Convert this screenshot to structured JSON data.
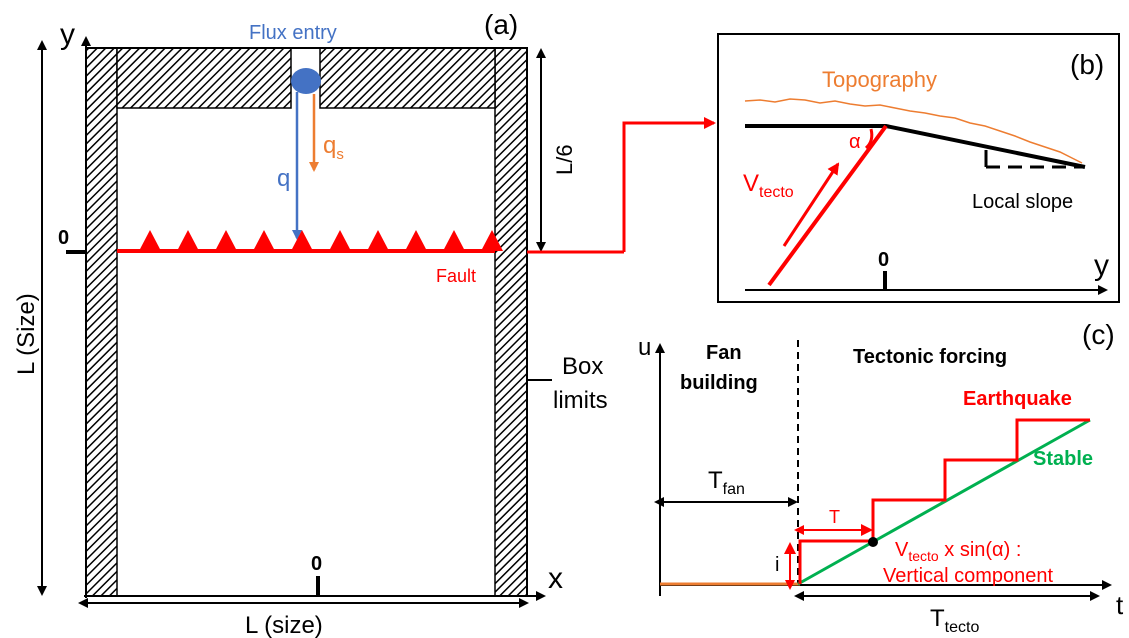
{
  "panel_a": {
    "label": "(a)",
    "axis_y": "y",
    "axis_x": "x",
    "flux_entry": "Flux entry",
    "q": "q",
    "qs_main": "q",
    "qs_sub": "s",
    "l6": "L/6",
    "zero_left": "0",
    "zero_bottom": "0",
    "fault": "Fault",
    "l_size_vertical": "L (Size)",
    "l_size_horizontal": "L (size)",
    "box_limits_1": "Box",
    "box_limits_2": "limits"
  },
  "panel_b": {
    "label": "(b)",
    "topography": "Topography",
    "alpha": "α",
    "vtecto_main": "V",
    "vtecto_sub": "tecto",
    "local_slope": "Local slope",
    "zero": "0",
    "axis_y": "y"
  },
  "panel_c": {
    "label": "(c)",
    "axis_u": "u",
    "axis_t": "t",
    "fan_building_1": "Fan",
    "fan_building_2": "building",
    "tectonic_forcing": "Tectonic forcing",
    "earthquake": "Earthquake",
    "stable": "Stable",
    "tfan_main": "T",
    "tfan_sub": "fan",
    "t_interval": "T",
    "i": "i",
    "vcomp_main": "V",
    "vcomp_sub": "tecto",
    "vcomp_rest": " x sin(α) :",
    "vertical_component": "Vertical component",
    "ttecto_main": "T",
    "ttecto_sub": "tecto"
  },
  "colors": {
    "red": "#ff0000",
    "blue": "#4472c4",
    "orange": "#ed7d31",
    "green": "#00b050",
    "black": "#000000"
  }
}
